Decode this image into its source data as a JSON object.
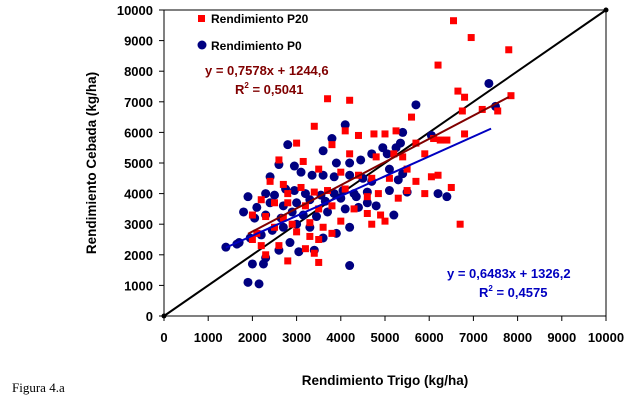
{
  "chart_data": {
    "type": "scatter",
    "xlabel": "Rendimiento Trigo (kg/ha)",
    "ylabel": "Rendimiento Cebada (kg/ha)",
    "xlim": [
      0,
      10000
    ],
    "ylim": [
      0,
      10000
    ],
    "x_ticks": [
      "0",
      "1000",
      "2000",
      "3000",
      "4000",
      "5000",
      "6000",
      "7000",
      "8000",
      "9000",
      "10000"
    ],
    "y_ticks": [
      "0",
      "1000",
      "2000",
      "3000",
      "4000",
      "5000",
      "6000",
      "7000",
      "8000",
      "9000",
      "10000"
    ],
    "grid": false,
    "legend_position": "top-left",
    "reference_line": {
      "name": "1:1",
      "x": [
        0,
        10000
      ],
      "y": [
        0,
        10000
      ],
      "color": "#000000"
    },
    "series": [
      {
        "name": "Rendimiento P20",
        "marker": "square",
        "color": "#ff0000",
        "trend_color": "#800000",
        "equation": "y = 0,7578x + 1244,6",
        "r2_label": "R",
        "r2_value": " = 0,5041",
        "trend": {
          "slope": 0.7578,
          "intercept": 1244.6,
          "x_range": [
            1900,
            7800
          ]
        },
        "points": [
          [
            6550,
            9650
          ],
          [
            6950,
            9100
          ],
          [
            7800,
            8700
          ],
          [
            6200,
            8200
          ],
          [
            6650,
            7350
          ],
          [
            3700,
            7100
          ],
          [
            4200,
            7050
          ],
          [
            6800,
            7150
          ],
          [
            6750,
            6700
          ],
          [
            7200,
            6750
          ],
          [
            7850,
            7200
          ],
          [
            7550,
            6700
          ],
          [
            3400,
            6200
          ],
          [
            5600,
            6500
          ],
          [
            4100,
            6050
          ],
          [
            4750,
            5950
          ],
          [
            5250,
            6050
          ],
          [
            5000,
            5950
          ],
          [
            6100,
            5800
          ],
          [
            6250,
            5750
          ],
          [
            6400,
            5750
          ],
          [
            6800,
            5950
          ],
          [
            5700,
            5650
          ],
          [
            4400,
            5900
          ],
          [
            3000,
            5650
          ],
          [
            3800,
            5600
          ],
          [
            4200,
            5300
          ],
          [
            4800,
            5200
          ],
          [
            5200,
            5300
          ],
          [
            5400,
            5200
          ],
          [
            5900,
            5300
          ],
          [
            6050,
            4550
          ],
          [
            6200,
            4600
          ],
          [
            6500,
            4200
          ],
          [
            6700,
            3000
          ],
          [
            5500,
            4800
          ],
          [
            2600,
            5100
          ],
          [
            3150,
            5050
          ],
          [
            3500,
            4800
          ],
          [
            4000,
            4700
          ],
          [
            4400,
            4600
          ],
          [
            4700,
            4500
          ],
          [
            5100,
            4500
          ],
          [
            5500,
            4100
          ],
          [
            5700,
            4400
          ],
          [
            5900,
            4000
          ],
          [
            2400,
            4400
          ],
          [
            2700,
            4300
          ],
          [
            3100,
            4200
          ],
          [
            3400,
            4050
          ],
          [
            3700,
            4100
          ],
          [
            4100,
            4150
          ],
          [
            4600,
            3900
          ],
          [
            4850,
            4000
          ],
          [
            5300,
            3850
          ],
          [
            2200,
            3800
          ],
          [
            2500,
            3700
          ],
          [
            2800,
            3700
          ],
          [
            3200,
            3600
          ],
          [
            3500,
            3500
          ],
          [
            3800,
            3600
          ],
          [
            4300,
            3500
          ],
          [
            4600,
            3350
          ],
          [
            4900,
            3300
          ],
          [
            2000,
            3300
          ],
          [
            2300,
            3250
          ],
          [
            2700,
            3200
          ],
          [
            2900,
            3000
          ],
          [
            3300,
            3050
          ],
          [
            3600,
            2900
          ],
          [
            4000,
            3100
          ],
          [
            4700,
            3000
          ],
          [
            5000,
            3100
          ],
          [
            2100,
            2700
          ],
          [
            2500,
            2900
          ],
          [
            3000,
            2750
          ],
          [
            3300,
            2600
          ],
          [
            3500,
            2500
          ],
          [
            3800,
            2700
          ],
          [
            2200,
            2300
          ],
          [
            2600,
            2300
          ],
          [
            3200,
            2200
          ],
          [
            3400,
            2050
          ],
          [
            2300,
            2000
          ],
          [
            2800,
            1800
          ],
          [
            3500,
            1750
          ],
          [
            2000,
            2500
          ],
          [
            2800,
            4000
          ]
        ]
      },
      {
        "name": "Rendimiento P0",
        "marker": "circle",
        "color": "#000080",
        "trend_color": "#0000c0",
        "equation": "y = 0,6483x + 1326,2",
        "r2_label": "R",
        "r2_value": " = 0,4575",
        "trend": {
          "slope": 0.6483,
          "intercept": 1326.2,
          "x_range": [
            1400,
            7400
          ]
        },
        "points": [
          [
            7350,
            7600
          ],
          [
            7500,
            6850
          ],
          [
            5700,
            6900
          ],
          [
            5400,
            6000
          ],
          [
            5250,
            5500
          ],
          [
            5350,
            5650
          ],
          [
            4100,
            6250
          ],
          [
            3800,
            5800
          ],
          [
            3600,
            5400
          ],
          [
            2800,
            5600
          ],
          [
            4700,
            5300
          ],
          [
            4950,
            5500
          ],
          [
            5050,
            5300
          ],
          [
            5100,
            4800
          ],
          [
            5400,
            4650
          ],
          [
            5300,
            4450
          ],
          [
            4450,
            5100
          ],
          [
            4200,
            5000
          ],
          [
            3900,
            5000
          ],
          [
            6050,
            5900
          ],
          [
            2400,
            4550
          ],
          [
            2600,
            4950
          ],
          [
            2950,
            4900
          ],
          [
            3100,
            4700
          ],
          [
            3350,
            4600
          ],
          [
            3600,
            4600
          ],
          [
            3850,
            4550
          ],
          [
            4200,
            4600
          ],
          [
            4500,
            4500
          ],
          [
            4700,
            4400
          ],
          [
            2300,
            4000
          ],
          [
            2500,
            3950
          ],
          [
            2750,
            4150
          ],
          [
            2950,
            4100
          ],
          [
            3200,
            4000
          ],
          [
            3550,
            3950
          ],
          [
            3850,
            4000
          ],
          [
            4050,
            4100
          ],
          [
            4300,
            4000
          ],
          [
            4600,
            4050
          ],
          [
            5100,
            4100
          ],
          [
            5500,
            4050
          ],
          [
            1800,
            3400
          ],
          [
            2100,
            3550
          ],
          [
            2400,
            3700
          ],
          [
            2700,
            3600
          ],
          [
            3000,
            3700
          ],
          [
            3300,
            3800
          ],
          [
            3650,
            3750
          ],
          [
            4000,
            3850
          ],
          [
            4350,
            3900
          ],
          [
            4600,
            3700
          ],
          [
            4800,
            3600
          ],
          [
            5200,
            3300
          ],
          [
            1900,
            3900
          ],
          [
            2050,
            3200
          ],
          [
            2300,
            3300
          ],
          [
            2650,
            3200
          ],
          [
            2900,
            3400
          ],
          [
            3150,
            3300
          ],
          [
            3450,
            3250
          ],
          [
            3700,
            3400
          ],
          [
            4100,
            3500
          ],
          [
            4400,
            3550
          ],
          [
            1400,
            2250
          ],
          [
            1700,
            2400
          ],
          [
            1950,
            2550
          ],
          [
            2200,
            2650
          ],
          [
            2450,
            2800
          ],
          [
            2700,
            2900
          ],
          [
            3000,
            3000
          ],
          [
            3300,
            2900
          ],
          [
            3900,
            2700
          ],
          [
            4200,
            2900
          ],
          [
            6200,
            4000
          ],
          [
            2000,
            1700
          ],
          [
            2250,
            1700
          ],
          [
            2300,
            1900
          ],
          [
            2600,
            2150
          ],
          [
            2850,
            2400
          ],
          [
            3050,
            2100
          ],
          [
            3400,
            2150
          ],
          [
            3600,
            2550
          ],
          [
            1900,
            1100
          ],
          [
            2150,
            1050
          ],
          [
            4200,
            1650
          ],
          [
            6400,
            3900
          ],
          [
            1650,
            2350
          ]
        ]
      }
    ]
  },
  "caption": "Figura 4.a"
}
